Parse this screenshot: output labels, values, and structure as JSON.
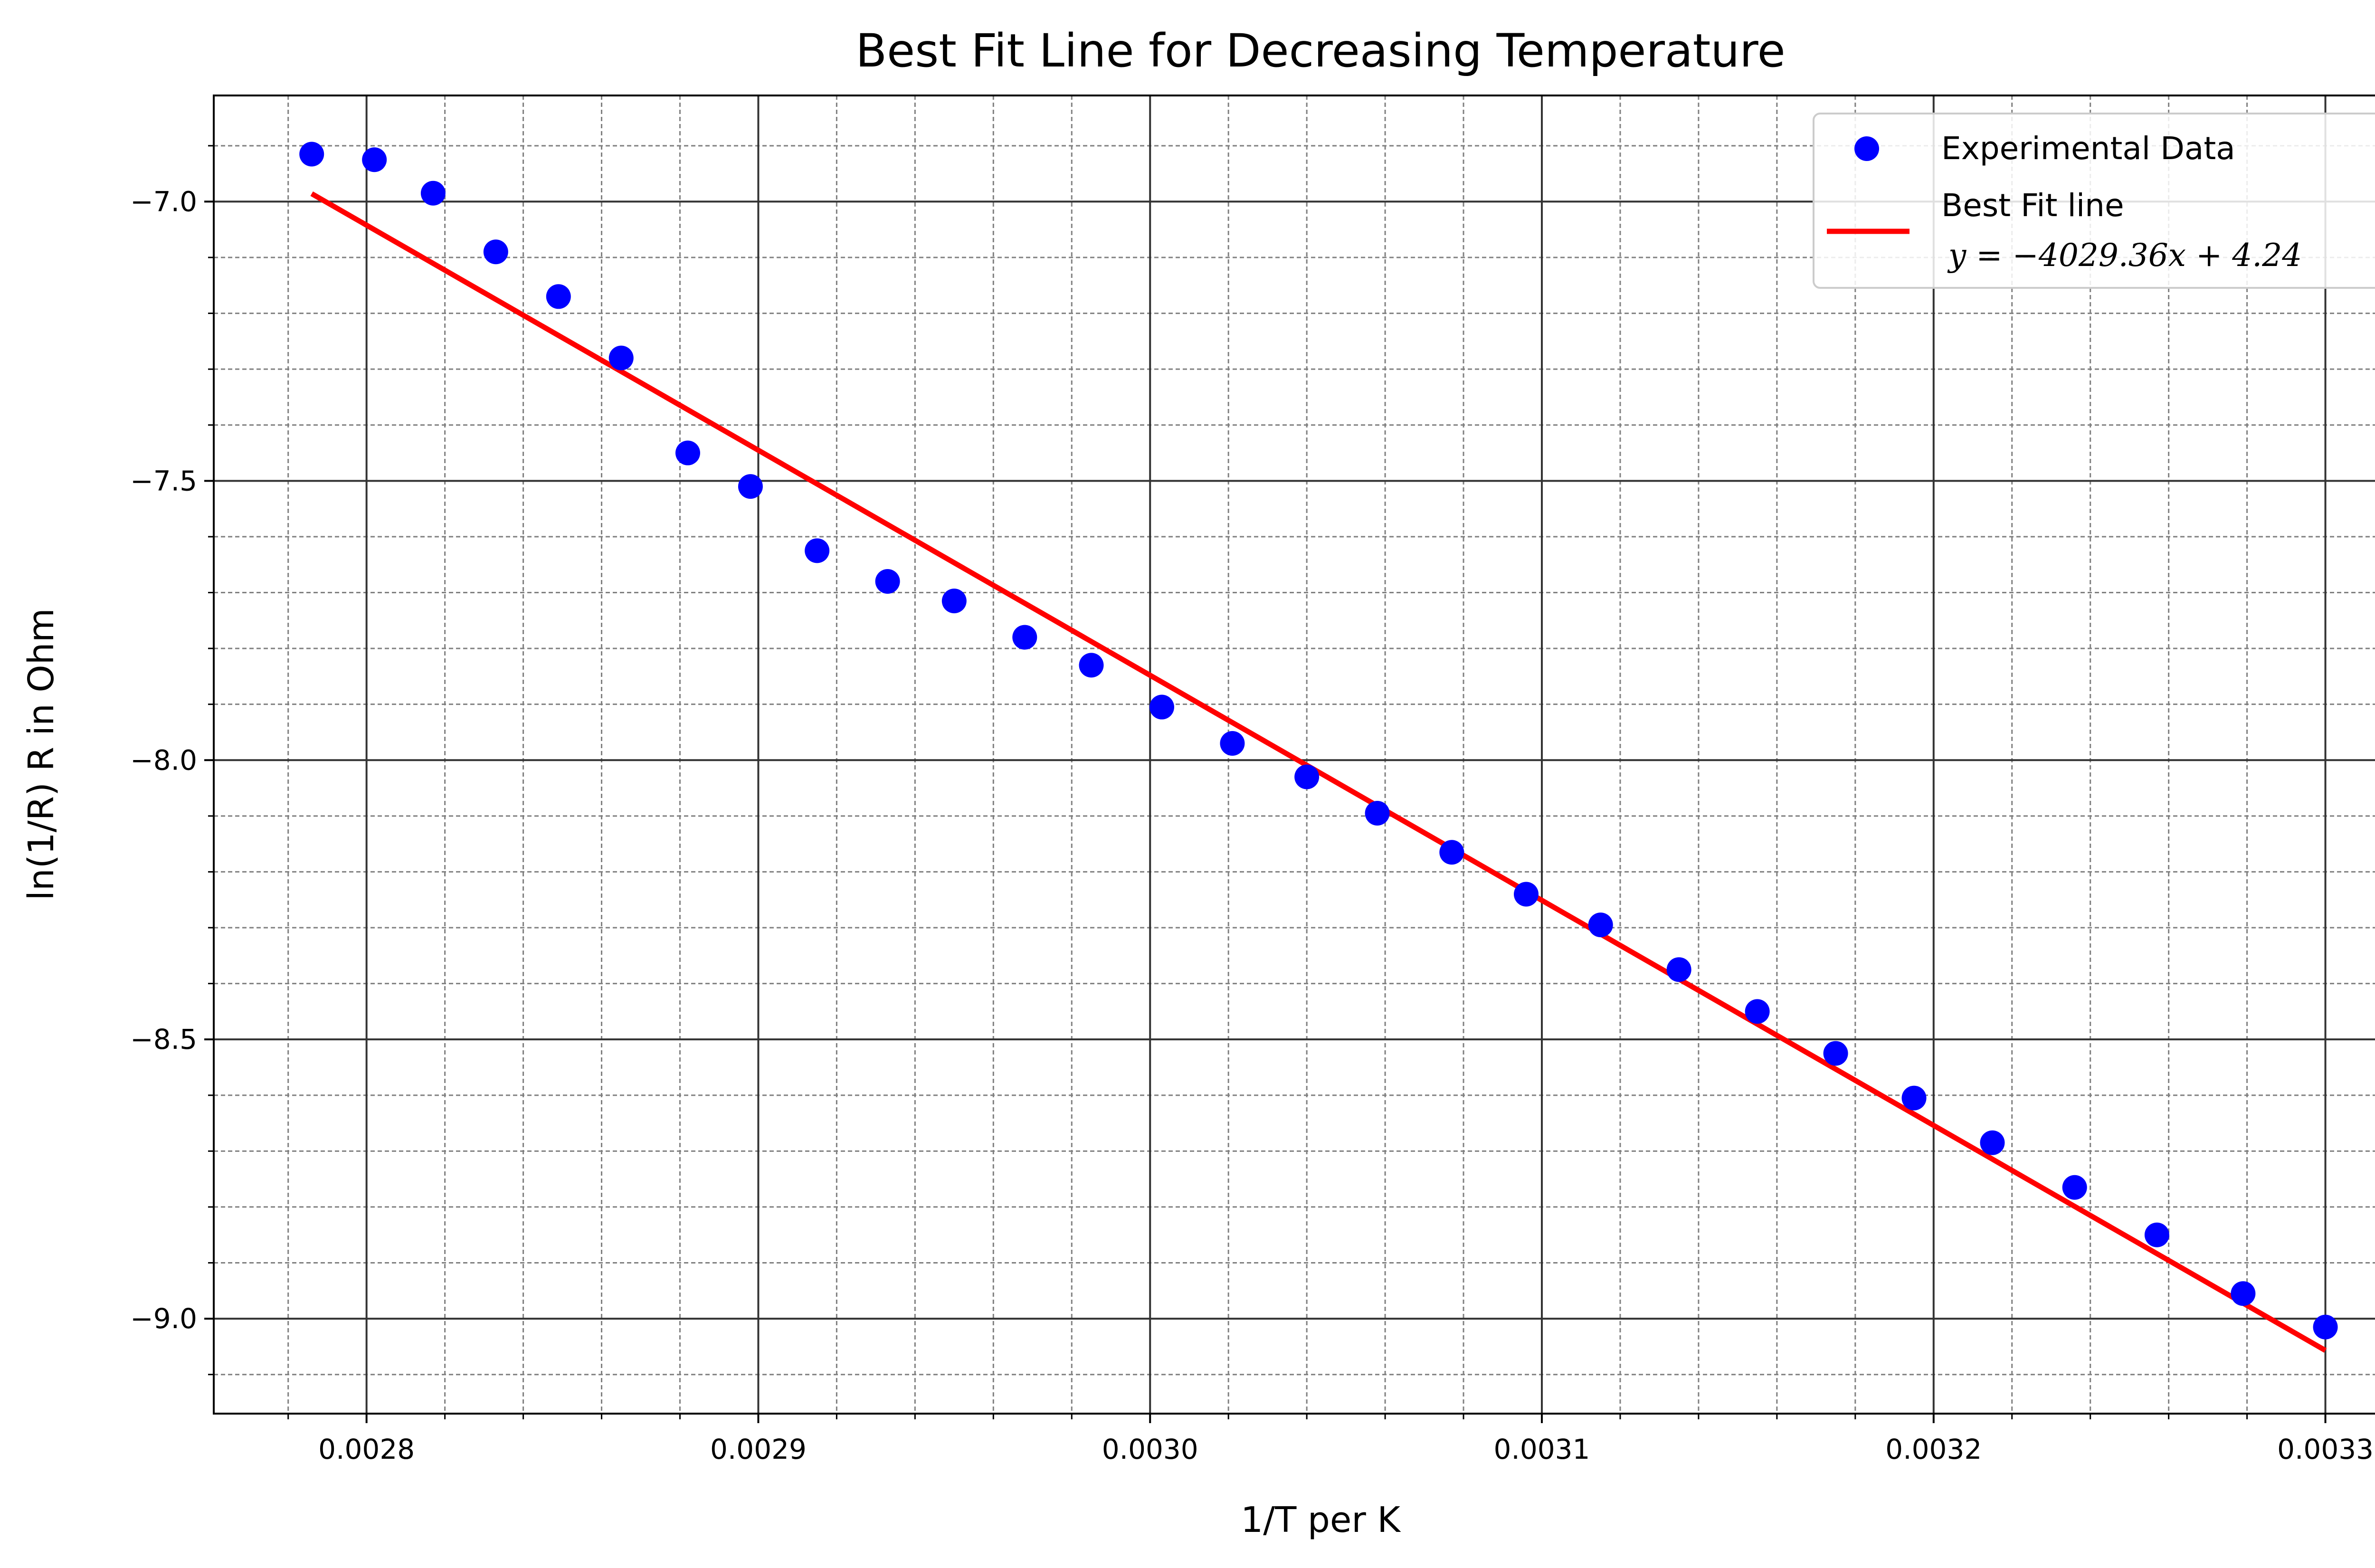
{
  "chart_data": {
    "type": "scatter",
    "title": "Best Fit Line for Decreasing Temperature",
    "xlabel": "1/T per K",
    "ylabel": "ln(1/R) R in Ohm",
    "xlim": [
      0.002761,
      0.003326
    ],
    "ylim": [
      -9.17,
      -6.81
    ],
    "xticks": [
      0.0028,
      0.0029,
      0.003,
      0.0031,
      0.0032,
      0.0033
    ],
    "xtick_labels": [
      "0.0028",
      "0.0029",
      "0.0030",
      "0.0031",
      "0.0032",
      "0.0033"
    ],
    "yticks": [
      -9.0,
      -8.5,
      -8.0,
      -7.5,
      -7.0
    ],
    "ytick_labels": [
      "−9.0",
      "−8.5",
      "−8.0",
      "−7.5",
      "−7.0"
    ],
    "grid": "major solid, minor dashed",
    "legend_position": "top-right",
    "series": [
      {
        "name": "Experimental Data",
        "kind": "scatter",
        "color": "#0000ff",
        "points": [
          [
            0.002786,
            -6.915
          ],
          [
            0.002802,
            -6.925
          ],
          [
            0.002817,
            -6.985
          ],
          [
            0.002833,
            -7.09
          ],
          [
            0.002849,
            -7.17
          ],
          [
            0.002865,
            -7.28
          ],
          [
            0.002882,
            -7.45
          ],
          [
            0.002898,
            -7.51
          ],
          [
            0.002915,
            -7.625
          ],
          [
            0.002933,
            -7.68
          ],
          [
            0.00295,
            -7.715
          ],
          [
            0.002968,
            -7.78
          ],
          [
            0.002985,
            -7.83
          ],
          [
            0.003003,
            -7.905
          ],
          [
            0.003021,
            -7.97
          ],
          [
            0.00304,
            -8.03
          ],
          [
            0.003058,
            -8.095
          ],
          [
            0.003077,
            -8.165
          ],
          [
            0.003096,
            -8.24
          ],
          [
            0.003115,
            -8.295
          ],
          [
            0.003135,
            -8.375
          ],
          [
            0.003155,
            -8.45
          ],
          [
            0.003175,
            -8.525
          ],
          [
            0.003195,
            -8.605
          ],
          [
            0.003215,
            -8.685
          ],
          [
            0.003236,
            -8.765
          ],
          [
            0.003257,
            -8.85
          ],
          [
            0.003279,
            -8.955
          ],
          [
            0.0033,
            -9.015
          ]
        ]
      },
      {
        "name": "Best Fit line",
        "kind": "line",
        "color": "#ff0000",
        "equation": "y = −4029.36x + 4.24",
        "slope": -4029.36,
        "intercept": 4.24,
        "x_range": [
          0.002786,
          0.0033
        ]
      }
    ]
  }
}
